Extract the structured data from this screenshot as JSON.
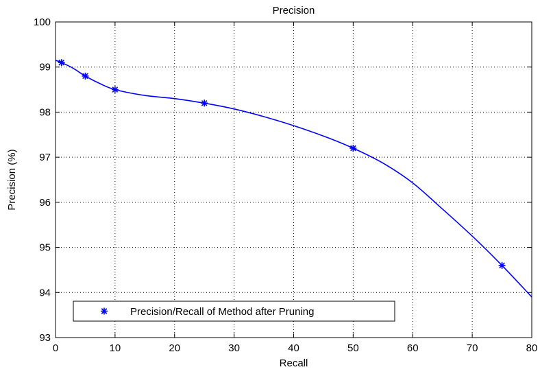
{
  "chart_data": {
    "type": "line",
    "title": "Precision",
    "xlabel": "Recall",
    "ylabel": "Precision (%)",
    "xlim": [
      0,
      80
    ],
    "ylim": [
      93,
      100
    ],
    "x_ticks": [
      0,
      10,
      20,
      30,
      40,
      50,
      60,
      70,
      80
    ],
    "y_ticks": [
      93,
      94,
      95,
      96,
      97,
      98,
      99,
      100
    ],
    "grid": true,
    "legend_position": "bottom-left",
    "series": [
      {
        "name": "Precision/Recall of Method after Pruning",
        "color": "#0000ff",
        "marker": "asterisk",
        "markers": [
          {
            "x": 1,
            "y": 99.1
          },
          {
            "x": 5,
            "y": 98.8
          },
          {
            "x": 10,
            "y": 98.5
          },
          {
            "x": 25,
            "y": 98.2
          },
          {
            "x": 50,
            "y": 97.2
          },
          {
            "x": 75,
            "y": 94.6
          }
        ],
        "curve": [
          {
            "x": 0,
            "y": 99.15
          },
          {
            "x": 1,
            "y": 99.1
          },
          {
            "x": 3,
            "y": 98.97
          },
          {
            "x": 5,
            "y": 98.8
          },
          {
            "x": 7.5,
            "y": 98.63
          },
          {
            "x": 10,
            "y": 98.5
          },
          {
            "x": 15,
            "y": 98.37
          },
          {
            "x": 20,
            "y": 98.3
          },
          {
            "x": 25,
            "y": 98.2
          },
          {
            "x": 30,
            "y": 98.07
          },
          {
            "x": 35,
            "y": 97.9
          },
          {
            "x": 40,
            "y": 97.7
          },
          {
            "x": 45,
            "y": 97.47
          },
          {
            "x": 50,
            "y": 97.2
          },
          {
            "x": 55,
            "y": 96.87
          },
          {
            "x": 60,
            "y": 96.43
          },
          {
            "x": 65,
            "y": 95.85
          },
          {
            "x": 70,
            "y": 95.25
          },
          {
            "x": 75,
            "y": 94.6
          },
          {
            "x": 80,
            "y": 93.9
          }
        ]
      }
    ]
  }
}
